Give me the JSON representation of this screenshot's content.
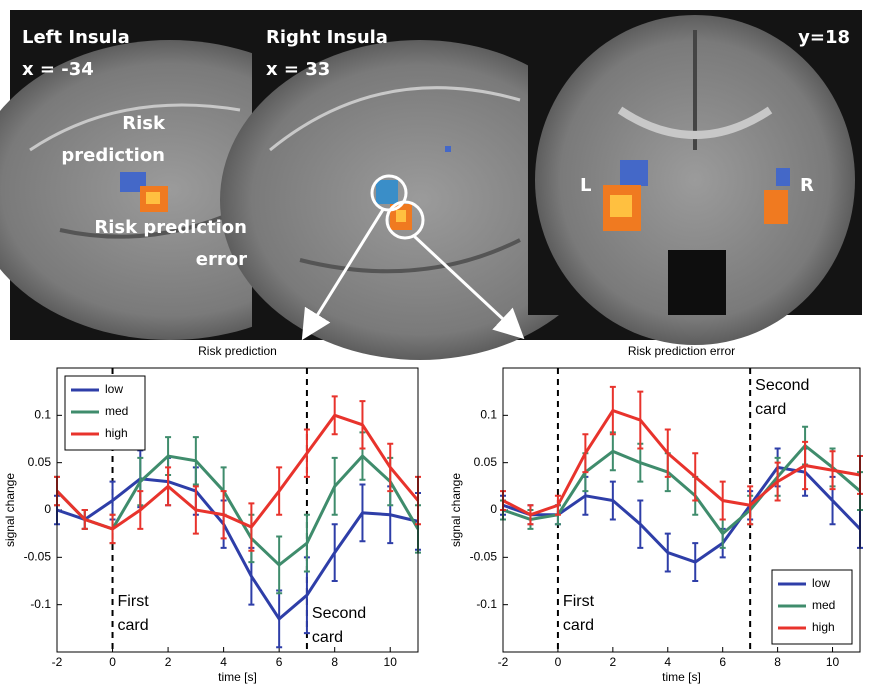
{
  "panels": [
    {
      "title": "Left Insula",
      "coord": "x = -34",
      "labels": [
        [
          "Risk",
          "prediction"
        ],
        [
          "Risk prediction",
          "error"
        ]
      ]
    },
    {
      "title": "Right Insula",
      "coord": "x = 33"
    },
    {
      "coord": "y=18",
      "labels": [
        [
          "L"
        ],
        [
          "R"
        ]
      ]
    }
  ],
  "chart_data": [
    {
      "type": "line",
      "title": "Risk prediction",
      "xlabel": "time [s]",
      "ylabel": "signal change",
      "x": [
        -2,
        -1,
        0,
        1,
        2,
        3,
        4,
        5,
        6,
        7,
        8,
        9,
        10,
        11
      ],
      "series": [
        {
          "name": "low",
          "color": "#2e3ea8",
          "values": [
            0.0,
            -0.01,
            0.01,
            0.033,
            0.03,
            0.02,
            -0.015,
            -0.07,
            -0.115,
            -0.09,
            -0.045,
            -0.003,
            -0.005,
            -0.012
          ],
          "errors": [
            0.015,
            0.01,
            0.02,
            0.03,
            0.025,
            0.025,
            0.025,
            0.03,
            0.03,
            0.04,
            0.03,
            0.03,
            0.03,
            0.03
          ]
        },
        {
          "name": "med",
          "color": "#3f8c6c",
          "values": [
            0.02,
            -0.01,
            -0.02,
            0.03,
            0.057,
            0.052,
            0.02,
            -0.03,
            -0.058,
            -0.035,
            0.025,
            0.057,
            0.03,
            -0.02
          ],
          "errors": [
            0.015,
            0.01,
            0.015,
            0.025,
            0.02,
            0.025,
            0.025,
            0.025,
            0.03,
            0.03,
            0.03,
            0.025,
            0.025,
            0.025
          ]
        },
        {
          "name": "high",
          "color": "#e8332c",
          "values": [
            0.02,
            -0.01,
            -0.02,
            0.0,
            0.025,
            0.0,
            -0.005,
            -0.018,
            0.02,
            0.06,
            0.1,
            0.09,
            0.045,
            0.01
          ],
          "errors": [
            0.015,
            0.01,
            0.015,
            0.02,
            0.02,
            0.025,
            0.025,
            0.025,
            0.025,
            0.025,
            0.02,
            0.025,
            0.025,
            0.025
          ]
        }
      ],
      "annotations": [
        {
          "x": 0,
          "label": [
            "First",
            "card"
          ]
        },
        {
          "x": 7,
          "label": [
            "Second",
            "card"
          ]
        }
      ],
      "xlim": [
        -2,
        11
      ],
      "ylim": [
        -0.15,
        0.15
      ],
      "xticks": [
        -2,
        0,
        2,
        4,
        6,
        8,
        10
      ],
      "yticks": [
        -0.1,
        -0.05,
        0,
        0.05,
        0.1
      ],
      "legend": "upper left"
    },
    {
      "type": "line",
      "title": "Risk prediction error",
      "xlabel": "time [s]",
      "ylabel": "signal change",
      "x": [
        -2,
        -1,
        0,
        1,
        2,
        3,
        4,
        5,
        6,
        7,
        8,
        9,
        10,
        11
      ],
      "series": [
        {
          "name": "low",
          "color": "#2e3ea8",
          "values": [
            0.005,
            -0.005,
            -0.005,
            0.015,
            0.01,
            -0.015,
            -0.045,
            -0.055,
            -0.035,
            0.005,
            0.045,
            0.04,
            0.01,
            -0.02
          ],
          "errors": [
            0.01,
            0.01,
            0.01,
            0.02,
            0.02,
            0.025,
            0.02,
            0.02,
            0.015,
            0.015,
            0.02,
            0.025,
            0.025,
            0.02
          ]
        },
        {
          "name": "med",
          "color": "#3f8c6c",
          "values": [
            0.0,
            -0.01,
            -0.005,
            0.04,
            0.062,
            0.05,
            0.04,
            0.015,
            -0.025,
            0.0,
            0.035,
            0.068,
            0.045,
            0.02
          ],
          "errors": [
            0.01,
            0.01,
            0.01,
            0.02,
            0.02,
            0.02,
            0.02,
            0.02,
            0.015,
            0.015,
            0.02,
            0.02,
            0.02,
            0.02
          ]
        },
        {
          "name": "high",
          "color": "#e8332c",
          "values": [
            0.01,
            -0.005,
            0.005,
            0.06,
            0.105,
            0.095,
            0.06,
            0.035,
            0.01,
            0.005,
            0.03,
            0.047,
            0.042,
            0.037
          ],
          "errors": [
            0.01,
            0.01,
            0.01,
            0.02,
            0.025,
            0.03,
            0.025,
            0.025,
            0.02,
            0.02,
            0.02,
            0.025,
            0.02,
            0.02
          ]
        }
      ],
      "annotations": [
        {
          "x": 0,
          "label": [
            "First",
            "card"
          ]
        },
        {
          "x": 7,
          "label": [
            "Second",
            "card"
          ]
        }
      ],
      "xlim": [
        -2,
        11
      ],
      "ylim": [
        -0.15,
        0.15
      ],
      "xticks": [
        -2,
        0,
        2,
        4,
        6,
        8,
        10
      ],
      "yticks": [
        -0.1,
        -0.05,
        0,
        0.05,
        0.1
      ],
      "legend": "lower right"
    }
  ]
}
